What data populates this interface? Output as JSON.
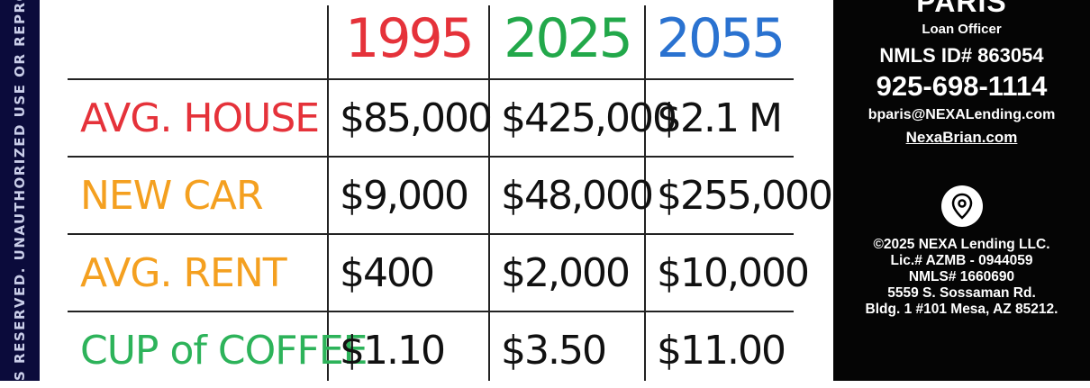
{
  "watermark_strip": {
    "text": "S RESERVED. UNAUTHORIZED USE OR REPRO",
    "color": "#0b0b3b"
  },
  "table": {
    "years": [
      {
        "label": "1995",
        "color": "#e5323a"
      },
      {
        "label": "2025",
        "color": "#22a84a"
      },
      {
        "label": "2055",
        "color": "#2a72d0"
      }
    ],
    "rows": [
      {
        "label": "AVG. HOUSE",
        "color": "#e5323a",
        "values": [
          "$85,000",
          "$425,000",
          "$2.1 M"
        ]
      },
      {
        "label": "NEW CAR",
        "color": "#f4a020",
        "values": [
          "$9,000",
          "$48,000",
          "$255,000"
        ]
      },
      {
        "label": "AVG. RENT",
        "color": "#f4a020",
        "values": [
          "$400",
          "$2,000",
          "$10,000"
        ]
      },
      {
        "label": "CUP of COFFEE",
        "color": "#2db35a",
        "values": [
          "$1.10",
          "$3.50",
          "$11.00"
        ]
      }
    ]
  },
  "sidebar": {
    "name": "PARIS",
    "title": "Loan Officer",
    "nmls_id": "NMLS ID# 863054",
    "phone": "925-698-1114",
    "email": "bparis@NEXALending.com",
    "website": "NexaBrian.com",
    "location_icon": "map-pin-icon",
    "footer": [
      "©2025 NEXA Lending LLC.",
      "Lic.# AZMB - 0944059",
      "NMLS# 1660690",
      "5559 S. Sossaman Rd.",
      "Bldg. 1 #101 Mesa, AZ 85212."
    ]
  }
}
